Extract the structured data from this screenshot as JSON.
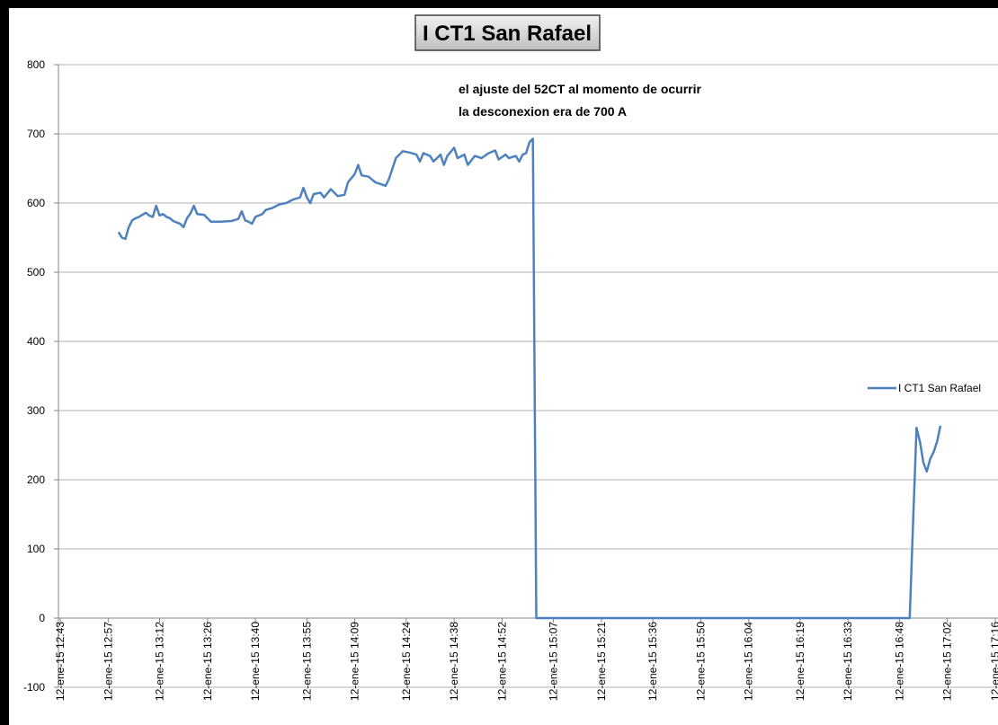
{
  "chart_data": {
    "type": "line",
    "title": "I CT1 San Rafael",
    "annotation": [
      "el ajuste del 52CT al momento de ocurrir",
      "la desconexion era de 700 A"
    ],
    "x": [
      "12-ene-15 13:00",
      "12-ene-15 13:01",
      "12-ene-15 13:02",
      "12-ene-15 13:03",
      "12-ene-15 13:04",
      "12-ene-15 13:05",
      "12-ene-15 13:06",
      "12-ene-15 13:07",
      "12-ene-15 13:08",
      "12-ene-15 13:09",
      "12-ene-15 13:10",
      "12-ene-15 13:11",
      "12-ene-15 13:12",
      "12-ene-15 13:13",
      "12-ene-15 13:14",
      "12-ene-15 13:15",
      "12-ene-15 13:16",
      "12-ene-15 13:17",
      "12-ene-15 13:18",
      "12-ene-15 13:19",
      "12-ene-15 13:20",
      "12-ene-15 13:21",
      "12-ene-15 13:22",
      "12-ene-15 13:23",
      "12-ene-15 13:25",
      "12-ene-15 13:27",
      "12-ene-15 13:30",
      "12-ene-15 13:33",
      "12-ene-15 13:35",
      "12-ene-15 13:36",
      "12-ene-15 13:37",
      "12-ene-15 13:38",
      "12-ene-15 13:39",
      "12-ene-15 13:40",
      "12-ene-15 13:42",
      "12-ene-15 13:43",
      "12-ene-15 13:45",
      "12-ene-15 13:47",
      "12-ene-15 13:49",
      "12-ene-15 13:51",
      "12-ene-15 13:53",
      "12-ene-15 13:54",
      "12-ene-15 13:55",
      "12-ene-15 13:56",
      "12-ene-15 13:57",
      "12-ene-15 13:59",
      "12-ene-15 14:00",
      "12-ene-15 14:02",
      "12-ene-15 14:04",
      "12-ene-15 14:06",
      "12-ene-15 14:07",
      "12-ene-15 14:09",
      "12-ene-15 14:10",
      "12-ene-15 14:11",
      "12-ene-15 14:13",
      "12-ene-15 14:15",
      "12-ene-15 14:18",
      "12-ene-15 14:19",
      "12-ene-15 14:20",
      "12-ene-15 14:21",
      "12-ene-15 14:23",
      "12-ene-15 14:25",
      "12-ene-15 14:27",
      "12-ene-15 14:28",
      "12-ene-15 14:29",
      "12-ene-15 14:31",
      "12-ene-15 14:32",
      "12-ene-15 14:34",
      "12-ene-15 14:35",
      "12-ene-15 14:36",
      "12-ene-15 14:38",
      "12-ene-15 14:39",
      "12-ene-15 14:41",
      "12-ene-15 14:42",
      "12-ene-15 14:44",
      "12-ene-15 14:46",
      "12-ene-15 14:48",
      "12-ene-15 14:50",
      "12-ene-15 14:51",
      "12-ene-15 14:53",
      "12-ene-15 14:54",
      "12-ene-15 14:56",
      "12-ene-15 14:57",
      "12-ene-15 14:58",
      "12-ene-15 14:59",
      "12-ene-15 15:00",
      "12-ene-15 15:01",
      "12-ene-15 15:02",
      "12-ene-15 16:51",
      "12-ene-15 16:52",
      "12-ene-15 16:53",
      "12-ene-15 16:54",
      "12-ene-15 16:55",
      "12-ene-15 16:56",
      "12-ene-15 16:57",
      "12-ene-15 16:58",
      "12-ene-15 16:59",
      "12-ene-15 17:00"
    ],
    "series": [
      {
        "name": "I CT1 San Rafael",
        "color": "#4f81bd",
        "values": [
          558,
          550,
          548,
          565,
          575,
          578,
          580,
          583,
          586,
          582,
          580,
          596,
          582,
          584,
          580,
          578,
          574,
          572,
          570,
          565,
          578,
          585,
          596,
          584,
          583,
          573,
          573,
          574,
          577,
          588,
          575,
          573,
          570,
          580,
          584,
          590,
          593,
          598,
          600,
          605,
          608,
          622,
          608,
          600,
          613,
          615,
          608,
          620,
          610,
          612,
          630,
          642,
          655,
          640,
          638,
          630,
          625,
          635,
          650,
          665,
          675,
          673,
          670,
          660,
          672,
          668,
          660,
          670,
          655,
          668,
          680,
          665,
          670,
          655,
          668,
          665,
          672,
          676,
          663,
          670,
          665,
          668,
          660,
          670,
          672,
          688,
          693,
          0,
          0,
          140,
          275,
          255,
          225,
          212,
          230,
          240,
          255,
          278
        ]
      }
    ],
    "xlim": [
      "12-ene-15 12:43",
      "12-ene-15 17:16"
    ],
    "xticks": [
      "12-ene-15 12:43",
      "12-ene-15 12:57",
      "12-ene-15 13:12",
      "12-ene-15 13:26",
      "12-ene-15 13:40",
      "12-ene-15 13:55",
      "12-ene-15 14:09",
      "12-ene-15 14:24",
      "12-ene-15 14:38",
      "12-ene-15 14:52",
      "12-ene-15 15:07",
      "12-ene-15 15:21",
      "12-ene-15 15:36",
      "12-ene-15 15:50",
      "12-ene-15 16:04",
      "12-ene-15 16:19",
      "12-ene-15 16:33",
      "12-ene-15 16:48",
      "12-ene-15 17:02",
      "12-ene-15 17:16"
    ],
    "ylim": [
      -100,
      800
    ],
    "yticks": [
      -100,
      0,
      100,
      200,
      300,
      400,
      500,
      600,
      700,
      800
    ],
    "grid": true,
    "legend": "right"
  }
}
